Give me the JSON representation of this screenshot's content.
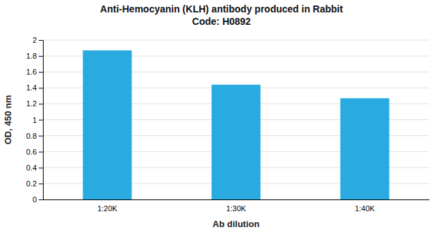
{
  "chart_data": {
    "type": "bar",
    "title": "Anti-Hemocyanin (KLH) antibody produced in Rabbit",
    "subtitle": "Code: H0892",
    "categories": [
      "1:20K",
      "1:30K",
      "1:40K"
    ],
    "values": [
      1.87,
      1.44,
      1.27
    ],
    "color": "#29ABE2",
    "x_label": "Ab dilution",
    "y_label": "OD, 450 nm",
    "ylim": [
      0,
      2.0
    ],
    "yticks": [
      0,
      0.2,
      0.4,
      0.6,
      0.8,
      1,
      1.2,
      1.4,
      1.6,
      1.8,
      2
    ],
    "grid": true
  }
}
